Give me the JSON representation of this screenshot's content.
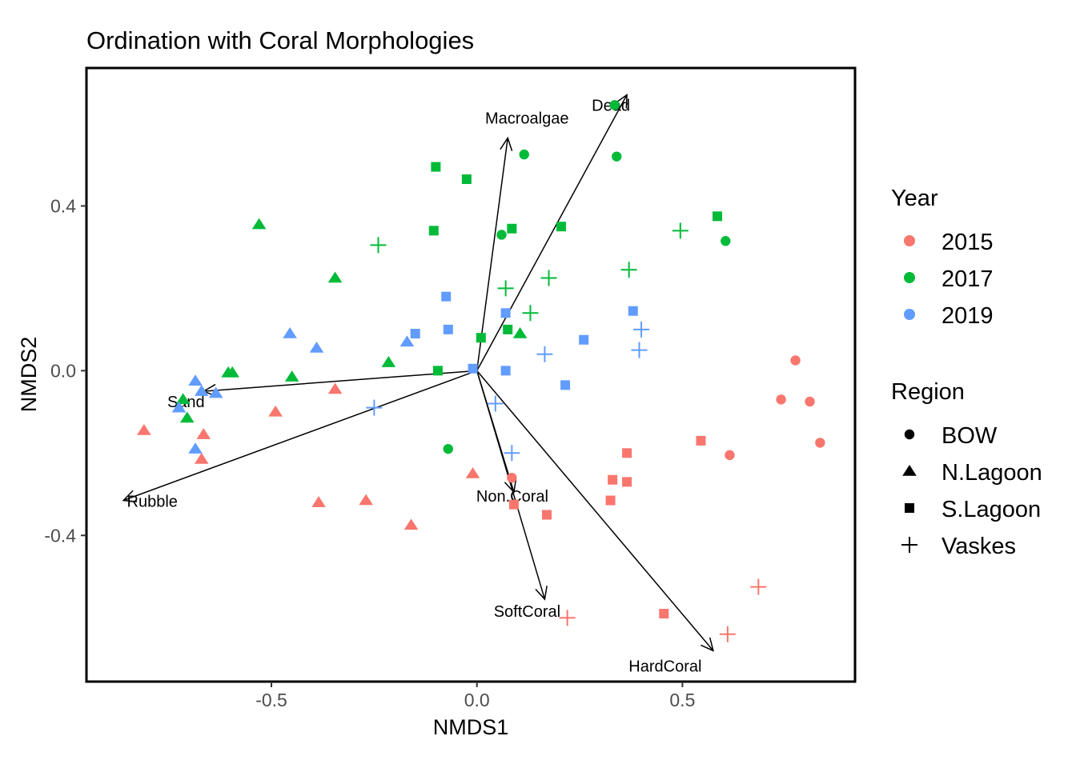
{
  "chart_data": {
    "type": "scatter",
    "title": "Ordination with Coral Morphologies",
    "xlabel": "NMDS1",
    "ylabel": "NMDS2",
    "xlim": [
      -0.95,
      0.92
    ],
    "ylim": [
      -0.755,
      0.735
    ],
    "x_ticks": [
      {
        "value": -0.5,
        "label": "-0.5"
      },
      {
        "value": 0.0,
        "label": "0.0"
      },
      {
        "value": 0.5,
        "label": "0.5"
      }
    ],
    "y_ticks": [
      {
        "value": -0.4,
        "label": "-0.4"
      },
      {
        "value": 0.0,
        "label": "0.0"
      },
      {
        "value": 0.4,
        "label": "0.4"
      }
    ],
    "grid": false,
    "legend_placement": "right",
    "colors": {
      "2015": "#F8766D",
      "2017": "#00BA38",
      "2019": "#619CFF"
    },
    "legends": {
      "year": {
        "title": "Year",
        "items": [
          "2015",
          "2017",
          "2019"
        ]
      },
      "region": {
        "title": "Region",
        "items": [
          {
            "label": "BOW",
            "shape": "circle"
          },
          {
            "label": "N.Lagoon",
            "shape": "triangle"
          },
          {
            "label": "S.Lagoon",
            "shape": "square"
          },
          {
            "label": "Vaskes",
            "shape": "plus"
          }
        ]
      }
    },
    "vectors": [
      {
        "label": "Macroalgae",
        "x": 0.075,
        "y": 0.565
      },
      {
        "label": "Dead",
        "x": 0.365,
        "y": 0.67
      },
      {
        "label": "Sand",
        "x": -0.665,
        "y": -0.05
      },
      {
        "label": "Rubble",
        "x": -0.86,
        "y": -0.315
      },
      {
        "label": "Non.Coral",
        "x": 0.09,
        "y": -0.295
      },
      {
        "label": "SoftCoral",
        "x": 0.165,
        "y": -0.555
      },
      {
        "label": "HardCoral",
        "x": 0.575,
        "y": -0.68
      }
    ],
    "points": [
      {
        "x": 0.775,
        "y": 0.025,
        "region": "BOW",
        "year": "2015"
      },
      {
        "x": 0.74,
        "y": -0.07,
        "region": "BOW",
        "year": "2015"
      },
      {
        "x": 0.81,
        "y": -0.075,
        "region": "BOW",
        "year": "2015"
      },
      {
        "x": 0.835,
        "y": -0.175,
        "region": "BOW",
        "year": "2015"
      },
      {
        "x": 0.615,
        "y": -0.205,
        "region": "BOW",
        "year": "2015"
      },
      {
        "x": 0.085,
        "y": -0.26,
        "region": "BOW",
        "year": "2015"
      },
      {
        "x": -0.81,
        "y": -0.145,
        "region": "N.Lagoon",
        "year": "2015"
      },
      {
        "x": -0.665,
        "y": -0.155,
        "region": "N.Lagoon",
        "year": "2015"
      },
      {
        "x": -0.67,
        "y": -0.215,
        "region": "N.Lagoon",
        "year": "2015"
      },
      {
        "x": -0.49,
        "y": -0.1,
        "region": "N.Lagoon",
        "year": "2015"
      },
      {
        "x": -0.345,
        "y": -0.045,
        "region": "N.Lagoon",
        "year": "2015"
      },
      {
        "x": -0.385,
        "y": -0.32,
        "region": "N.Lagoon",
        "year": "2015"
      },
      {
        "x": -0.27,
        "y": -0.315,
        "region": "N.Lagoon",
        "year": "2015"
      },
      {
        "x": -0.16,
        "y": -0.375,
        "region": "N.Lagoon",
        "year": "2015"
      },
      {
        "x": -0.01,
        "y": -0.25,
        "region": "N.Lagoon",
        "year": "2015"
      },
      {
        "x": 0.545,
        "y": -0.17,
        "region": "S.Lagoon",
        "year": "2015"
      },
      {
        "x": 0.365,
        "y": -0.2,
        "region": "S.Lagoon",
        "year": "2015"
      },
      {
        "x": 0.33,
        "y": -0.265,
        "region": "S.Lagoon",
        "year": "2015"
      },
      {
        "x": 0.365,
        "y": -0.27,
        "region": "S.Lagoon",
        "year": "2015"
      },
      {
        "x": 0.325,
        "y": -0.315,
        "region": "S.Lagoon",
        "year": "2015"
      },
      {
        "x": 0.09,
        "y": -0.325,
        "region": "S.Lagoon",
        "year": "2015"
      },
      {
        "x": 0.17,
        "y": -0.35,
        "region": "S.Lagoon",
        "year": "2015"
      },
      {
        "x": 0.455,
        "y": -0.59,
        "region": "S.Lagoon",
        "year": "2015"
      },
      {
        "x": 0.685,
        "y": -0.525,
        "region": "Vaskes",
        "year": "2015"
      },
      {
        "x": 0.61,
        "y": -0.64,
        "region": "Vaskes",
        "year": "2015"
      },
      {
        "x": 0.22,
        "y": -0.6,
        "region": "Vaskes",
        "year": "2015"
      },
      {
        "x": 0.335,
        "y": 0.645,
        "region": "BOW",
        "year": "2017"
      },
      {
        "x": 0.34,
        "y": 0.52,
        "region": "BOW",
        "year": "2017"
      },
      {
        "x": 0.115,
        "y": 0.525,
        "region": "BOW",
        "year": "2017"
      },
      {
        "x": 0.06,
        "y": 0.33,
        "region": "BOW",
        "year": "2017"
      },
      {
        "x": 0.605,
        "y": 0.315,
        "region": "BOW",
        "year": "2017"
      },
      {
        "x": -0.07,
        "y": -0.19,
        "region": "BOW",
        "year": "2017"
      },
      {
        "x": -0.53,
        "y": 0.355,
        "region": "N.Lagoon",
        "year": "2017"
      },
      {
        "x": -0.345,
        "y": 0.225,
        "region": "N.Lagoon",
        "year": "2017"
      },
      {
        "x": -0.605,
        "y": -0.005,
        "region": "N.Lagoon",
        "year": "2017"
      },
      {
        "x": -0.595,
        "y": -0.005,
        "region": "N.Lagoon",
        "year": "2017"
      },
      {
        "x": -0.45,
        "y": -0.015,
        "region": "N.Lagoon",
        "year": "2017"
      },
      {
        "x": -0.215,
        "y": 0.02,
        "region": "N.Lagoon",
        "year": "2017"
      },
      {
        "x": -0.715,
        "y": -0.07,
        "region": "N.Lagoon",
        "year": "2017"
      },
      {
        "x": -0.705,
        "y": -0.115,
        "region": "N.Lagoon",
        "year": "2017"
      },
      {
        "x": 0.105,
        "y": 0.09,
        "region": "N.Lagoon",
        "year": "2017"
      },
      {
        "x": -0.1,
        "y": 0.495,
        "region": "S.Lagoon",
        "year": "2017"
      },
      {
        "x": -0.025,
        "y": 0.465,
        "region": "S.Lagoon",
        "year": "2017"
      },
      {
        "x": -0.105,
        "y": 0.34,
        "region": "S.Lagoon",
        "year": "2017"
      },
      {
        "x": 0.085,
        "y": 0.345,
        "region": "S.Lagoon",
        "year": "2017"
      },
      {
        "x": 0.205,
        "y": 0.35,
        "region": "S.Lagoon",
        "year": "2017"
      },
      {
        "x": 0.585,
        "y": 0.375,
        "region": "S.Lagoon",
        "year": "2017"
      },
      {
        "x": 0.075,
        "y": 0.1,
        "region": "S.Lagoon",
        "year": "2017"
      },
      {
        "x": 0.01,
        "y": 0.08,
        "region": "S.Lagoon",
        "year": "2017"
      },
      {
        "x": -0.095,
        "y": 0.0,
        "region": "S.Lagoon",
        "year": "2017"
      },
      {
        "x": -0.24,
        "y": 0.305,
        "region": "Vaskes",
        "year": "2017"
      },
      {
        "x": 0.07,
        "y": 0.2,
        "region": "Vaskes",
        "year": "2017"
      },
      {
        "x": 0.175,
        "y": 0.225,
        "region": "Vaskes",
        "year": "2017"
      },
      {
        "x": 0.13,
        "y": 0.14,
        "region": "Vaskes",
        "year": "2017"
      },
      {
        "x": 0.37,
        "y": 0.245,
        "region": "Vaskes",
        "year": "2017"
      },
      {
        "x": 0.495,
        "y": 0.34,
        "region": "Vaskes",
        "year": "2017"
      },
      {
        "x": -0.455,
        "y": 0.09,
        "region": "N.Lagoon",
        "year": "2019"
      },
      {
        "x": -0.39,
        "y": 0.055,
        "region": "N.Lagoon",
        "year": "2019"
      },
      {
        "x": -0.17,
        "y": 0.07,
        "region": "N.Lagoon",
        "year": "2019"
      },
      {
        "x": -0.685,
        "y": -0.025,
        "region": "N.Lagoon",
        "year": "2019"
      },
      {
        "x": -0.67,
        "y": -0.05,
        "region": "N.Lagoon",
        "year": "2019"
      },
      {
        "x": -0.635,
        "y": -0.055,
        "region": "N.Lagoon",
        "year": "2019"
      },
      {
        "x": -0.725,
        "y": -0.09,
        "region": "N.Lagoon",
        "year": "2019"
      },
      {
        "x": -0.685,
        "y": -0.19,
        "region": "N.Lagoon",
        "year": "2019"
      },
      {
        "x": -0.075,
        "y": 0.18,
        "region": "S.Lagoon",
        "year": "2019"
      },
      {
        "x": -0.15,
        "y": 0.09,
        "region": "S.Lagoon",
        "year": "2019"
      },
      {
        "x": -0.07,
        "y": 0.1,
        "region": "S.Lagoon",
        "year": "2019"
      },
      {
        "x": 0.07,
        "y": 0.14,
        "region": "S.Lagoon",
        "year": "2019"
      },
      {
        "x": 0.26,
        "y": 0.075,
        "region": "S.Lagoon",
        "year": "2019"
      },
      {
        "x": 0.38,
        "y": 0.145,
        "region": "S.Lagoon",
        "year": "2019"
      },
      {
        "x": -0.01,
        "y": 0.005,
        "region": "S.Lagoon",
        "year": "2019"
      },
      {
        "x": 0.07,
        "y": 0.0,
        "region": "S.Lagoon",
        "year": "2019"
      },
      {
        "x": 0.215,
        "y": -0.035,
        "region": "S.Lagoon",
        "year": "2019"
      },
      {
        "x": 0.4,
        "y": 0.1,
        "region": "Vaskes",
        "year": "2019"
      },
      {
        "x": 0.395,
        "y": 0.05,
        "region": "Vaskes",
        "year": "2019"
      },
      {
        "x": 0.165,
        "y": 0.04,
        "region": "Vaskes",
        "year": "2019"
      },
      {
        "x": -0.25,
        "y": -0.09,
        "region": "Vaskes",
        "year": "2019"
      },
      {
        "x": 0.045,
        "y": -0.08,
        "region": "Vaskes",
        "year": "2019"
      },
      {
        "x": 0.085,
        "y": -0.2,
        "region": "Vaskes",
        "year": "2019"
      }
    ]
  }
}
